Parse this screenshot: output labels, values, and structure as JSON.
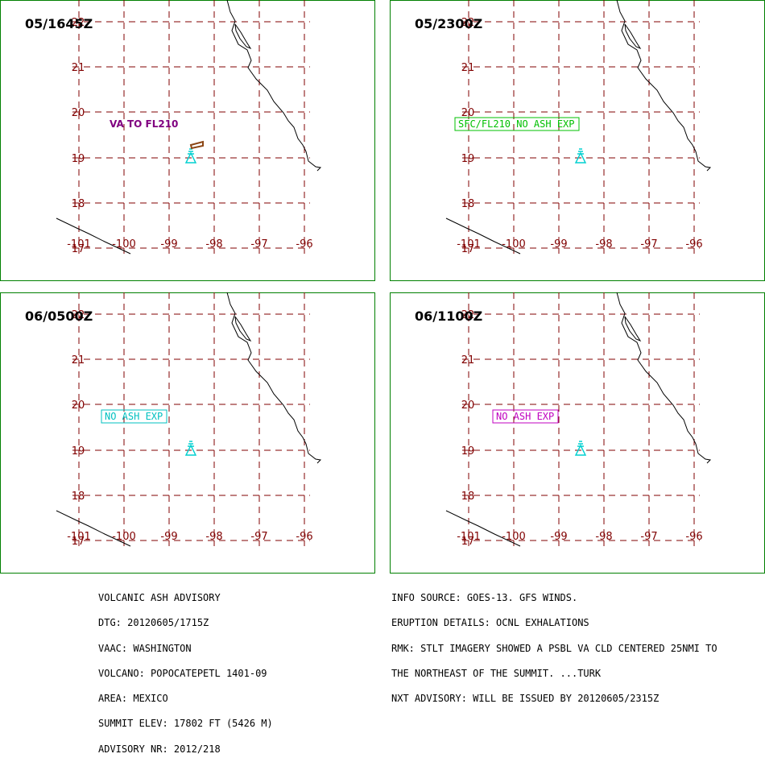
{
  "panels": [
    {
      "time": "05/1645Z",
      "label": "VA TO FL210",
      "label_style": "plain",
      "label_color": "#800080",
      "ash_cloud": true
    },
    {
      "time": "05/2300Z",
      "label": "SFC/FL210 NO ASH EXP",
      "label_style": "box",
      "label_color": "#00c000",
      "ash_cloud": false
    },
    {
      "time": "06/0500Z",
      "label": "NO ASH EXP",
      "label_style": "box",
      "label_color": "#00c0c0",
      "ash_cloud": false
    },
    {
      "time": "06/1100Z",
      "label": "NO ASH EXP",
      "label_style": "box",
      "label_color": "#c000c0",
      "ash_cloud": false
    }
  ],
  "map": {
    "lon_labels": [
      "-101",
      "-100",
      "-99",
      "-98",
      "-97",
      "-96"
    ],
    "lat_labels": [
      "22",
      "21",
      "20",
      "19",
      "18",
      "17"
    ],
    "grid_color": "#800000",
    "border_color": "#008000",
    "volcano_color": "#00d0d0",
    "ash_color": "#8b4513",
    "volcano_icon": "volcano-triangle-icon"
  },
  "advisory_left": [
    "VOLCANIC ASH ADVISORY",
    "DTG: 20120605/1715Z",
    "VAAC: WASHINGTON",
    "VOLCANO: POPOCATEPETL 1401-09",
    "AREA: MEXICO",
    "SUMMIT ELEV: 17802 FT (5426 M)",
    "ADVISORY NR: 2012/218"
  ],
  "advisory_right": [
    "INFO SOURCE: GOES-13. GFS WINDS.",
    "ERUPTION DETAILS: OCNL EXHALATIONS",
    "RMK: STLT IMAGERY SHOWED A PSBL VA CLD CENTERED 25NMI TO",
    "THE NORTHEAST OF THE SUMMIT. ...TURK",
    "NXT ADVISORY: WILL BE ISSUED BY 20120605/2315Z"
  ]
}
